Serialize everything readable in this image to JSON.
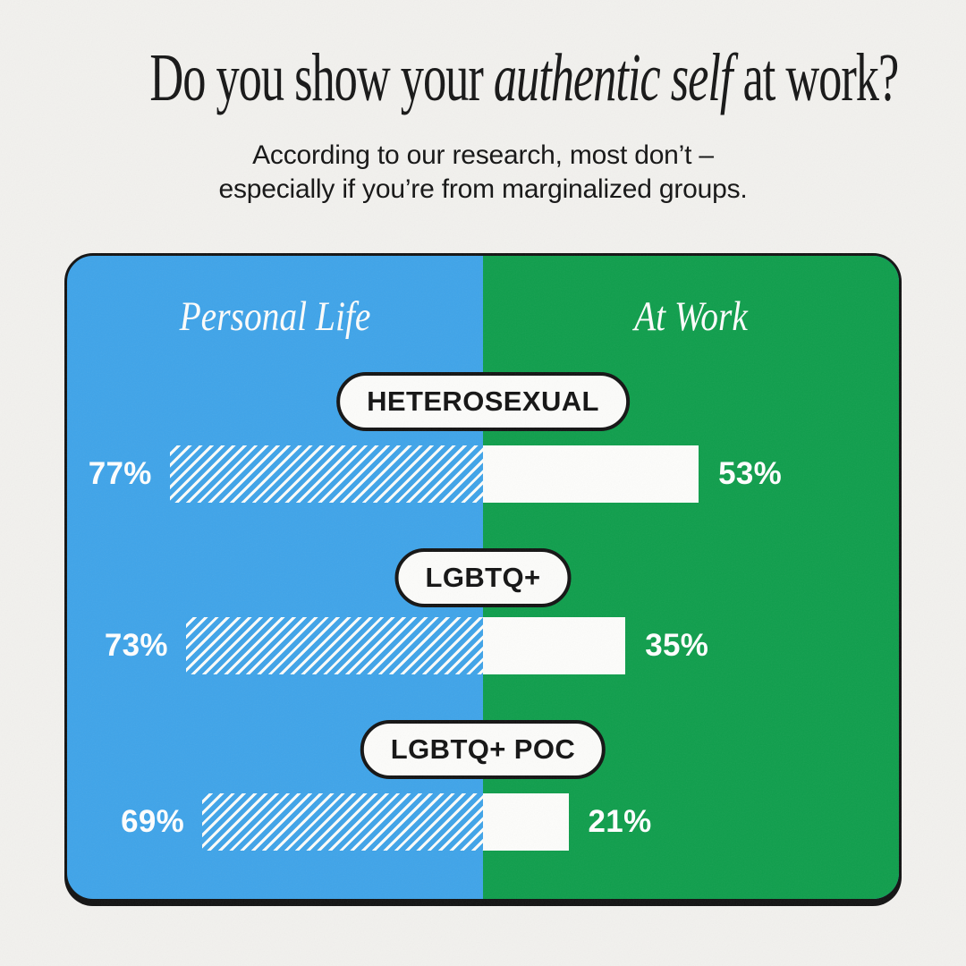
{
  "header": {
    "title_prefix": "Do you show your ",
    "title_emphasis": "authentic self",
    "title_suffix": " at work?",
    "subtitle_line1": "According to our research, most don’t –",
    "subtitle_line2": "especially if you’re from marginalized groups."
  },
  "card": {
    "left_label": "Personal Life",
    "right_label": "At Work",
    "colors": {
      "left_bg": "#3fa4e9",
      "right_bg": "#0f9e4c",
      "bar_fill": "#fdfdfb",
      "pill_bg": "#fcfcfa",
      "outline": "#121212",
      "page_bg": "#f2f1ee"
    }
  },
  "chart_data": {
    "type": "bar",
    "orientation": "horizontal",
    "layout": "diverging-from-center",
    "unit": "%",
    "xlim": [
      0,
      100
    ],
    "grid": false,
    "legend_position": "top-inside-panels",
    "categories": [
      "HETEROSEXUAL",
      "LGBTQ+",
      "LGBTQ+ POC"
    ],
    "series": [
      {
        "name": "Personal Life",
        "values": [
          77,
          73,
          69
        ]
      },
      {
        "name": "At Work",
        "values": [
          53,
          35,
          21
        ]
      }
    ],
    "rows": [
      {
        "category": "HETEROSEXUAL",
        "personal": 77,
        "work": 53,
        "personal_label": "77%",
        "work_label": "53%"
      },
      {
        "category": "LGBTQ+",
        "personal": 73,
        "work": 35,
        "personal_label": "73%",
        "work_label": "35%"
      },
      {
        "category": "LGBTQ+ POC",
        "personal": 69,
        "work": 21,
        "personal_label": "69%",
        "work_label": "21%"
      }
    ]
  }
}
